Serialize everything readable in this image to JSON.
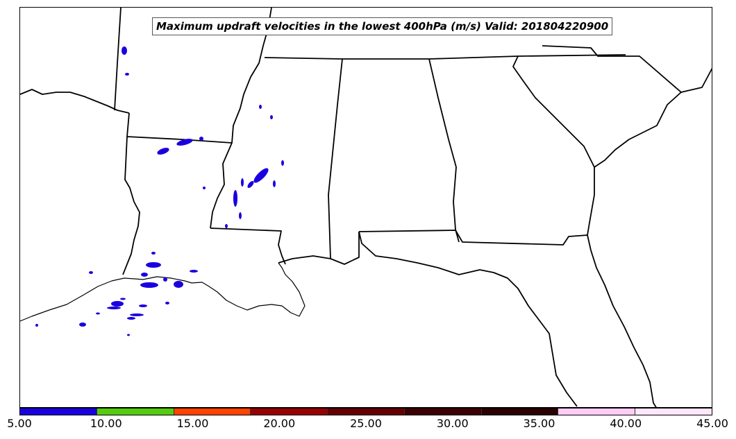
{
  "title": "Maximum updraft velocities in the lowest 400hPa (m/s) Valid: 201804220900",
  "colorbar": {
    "ticks": [
      "5.00",
      "10.00",
      "15.00",
      "20.00",
      "25.00",
      "30.00",
      "35.00",
      "40.00",
      "45.00"
    ],
    "colors": [
      "#1a00e0",
      "#55cc11",
      "#ff4400",
      "#990000",
      "#660000",
      "#3d0000",
      "#2a0000",
      "#ffccf5",
      "#ffe6fa"
    ]
  },
  "map": {
    "background": "#ffffff",
    "outline_color": "#000000",
    "field_color": "#1a00e0"
  }
}
